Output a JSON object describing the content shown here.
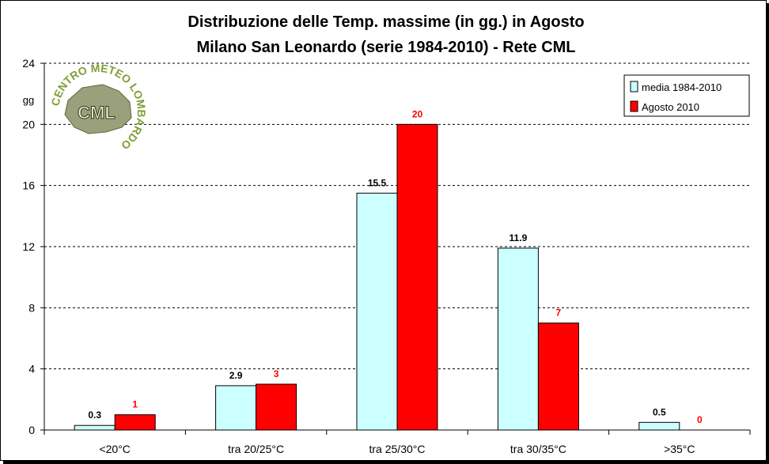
{
  "chart_data": {
    "type": "bar",
    "title": "Distribuzione delle Temp. massime (in gg.) in Agosto",
    "subtitle": "Milano San Leonardo (serie 1984-2010) - Rete CML",
    "ylabel": "gg",
    "xlabel": "",
    "ylim": [
      0,
      24
    ],
    "yticks": [
      0,
      4,
      8,
      12,
      16,
      20,
      24
    ],
    "grid": true,
    "legend_position": "top-right",
    "categories": [
      "<20°C",
      "tra 20/25°C",
      "tra 25/30°C",
      "tra 30/35°C",
      ">35°C"
    ],
    "series": [
      {
        "name": "media 1984-2010",
        "values": [
          0.3,
          2.9,
          15.5,
          11.9,
          0.5
        ],
        "labels": [
          "0.3",
          "2.9",
          "15.5",
          "11.9",
          "0.5"
        ],
        "color": "#ccffff",
        "label_color": "#000000"
      },
      {
        "name": "Agosto 2010",
        "values": [
          1,
          3,
          20,
          7,
          0
        ],
        "labels": [
          "1",
          "3",
          "20",
          "7",
          "0"
        ],
        "color": "#ff0000",
        "label_color": "#ff0000"
      }
    ]
  },
  "logo": {
    "text_arc": "CENTRO METEO LOMBARDO",
    "center_text": "CML"
  }
}
